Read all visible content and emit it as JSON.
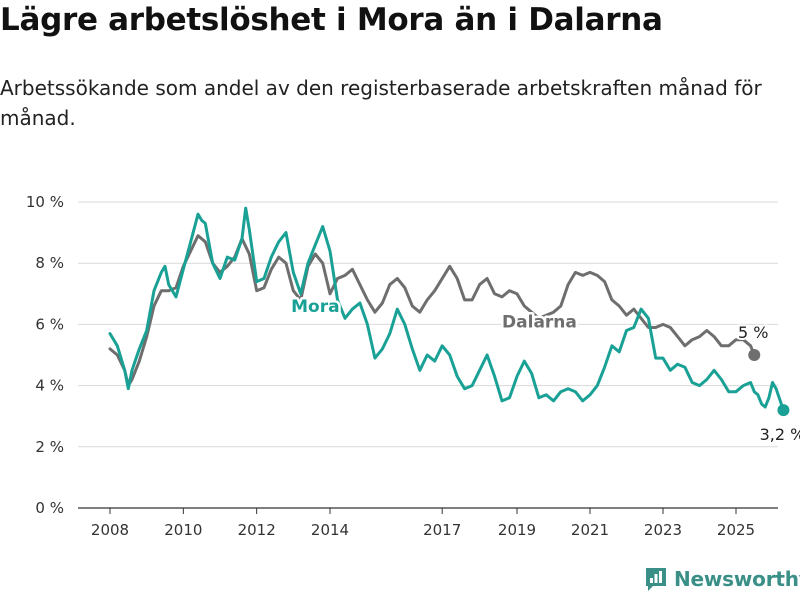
{
  "title": "Lägre arbetslöshet i Mora än i Dalarna",
  "subtitle": "Arbetssökande som andel av den registerbaserade arbetskraften månad för månad.",
  "brand": {
    "name": "Newsworthy",
    "icon": "newsworthy-logo-icon",
    "color": "#3a8f86"
  },
  "chart_data": {
    "type": "line",
    "title": "",
    "xlabel": "",
    "ylabel": "",
    "x_ticks": [
      "2008",
      "2010",
      "2012",
      "2014",
      "2017",
      "2019",
      "2021",
      "2023",
      "2025"
    ],
    "y_ticks": [
      "0 %",
      "2 %",
      "4 %",
      "6 %",
      "8 %",
      "10 %"
    ],
    "ylim": [
      0,
      10
    ],
    "grid": true,
    "series": [
      {
        "name": "Dalarna",
        "color": "#6e6e6e",
        "end_label": "5 %",
        "points": [
          [
            2008.0,
            5.2
          ],
          [
            2008.2,
            5.0
          ],
          [
            2008.4,
            4.5
          ],
          [
            2008.5,
            4.0
          ],
          [
            2008.6,
            4.2
          ],
          [
            2008.8,
            4.8
          ],
          [
            2009.0,
            5.6
          ],
          [
            2009.2,
            6.6
          ],
          [
            2009.4,
            7.1
          ],
          [
            2009.6,
            7.1
          ],
          [
            2009.8,
            7.2
          ],
          [
            2010.0,
            7.9
          ],
          [
            2010.2,
            8.4
          ],
          [
            2010.4,
            8.9
          ],
          [
            2010.6,
            8.7
          ],
          [
            2010.8,
            8.0
          ],
          [
            2011.0,
            7.7
          ],
          [
            2011.2,
            7.9
          ],
          [
            2011.4,
            8.2
          ],
          [
            2011.6,
            8.8
          ],
          [
            2011.8,
            8.3
          ],
          [
            2012.0,
            7.1
          ],
          [
            2012.2,
            7.2
          ],
          [
            2012.4,
            7.8
          ],
          [
            2012.6,
            8.2
          ],
          [
            2012.8,
            8.0
          ],
          [
            2013.0,
            7.1
          ],
          [
            2013.2,
            6.8
          ],
          [
            2013.4,
            7.9
          ],
          [
            2013.6,
            8.3
          ],
          [
            2013.8,
            8.0
          ],
          [
            2014.0,
            7.0
          ],
          [
            2014.2,
            7.5
          ],
          [
            2014.4,
            7.6
          ],
          [
            2014.6,
            7.8
          ],
          [
            2014.8,
            7.3
          ],
          [
            2015.0,
            6.8
          ],
          [
            2015.2,
            6.4
          ],
          [
            2015.4,
            6.7
          ],
          [
            2015.6,
            7.3
          ],
          [
            2015.8,
            7.5
          ],
          [
            2016.0,
            7.2
          ],
          [
            2016.2,
            6.6
          ],
          [
            2016.4,
            6.4
          ],
          [
            2016.6,
            6.8
          ],
          [
            2016.8,
            7.1
          ],
          [
            2017.0,
            7.5
          ],
          [
            2017.2,
            7.9
          ],
          [
            2017.4,
            7.5
          ],
          [
            2017.6,
            6.8
          ],
          [
            2017.8,
            6.8
          ],
          [
            2018.0,
            7.3
          ],
          [
            2018.2,
            7.5
          ],
          [
            2018.4,
            7.0
          ],
          [
            2018.6,
            6.9
          ],
          [
            2018.8,
            7.1
          ],
          [
            2019.0,
            7.0
          ],
          [
            2019.2,
            6.6
          ],
          [
            2019.4,
            6.4
          ],
          [
            2019.6,
            6.2
          ],
          [
            2019.8,
            6.3
          ],
          [
            2020.0,
            6.4
          ],
          [
            2020.2,
            6.6
          ],
          [
            2020.4,
            7.3
          ],
          [
            2020.6,
            7.7
          ],
          [
            2020.8,
            7.6
          ],
          [
            2021.0,
            7.7
          ],
          [
            2021.2,
            7.6
          ],
          [
            2021.4,
            7.4
          ],
          [
            2021.6,
            6.8
          ],
          [
            2021.8,
            6.6
          ],
          [
            2022.0,
            6.3
          ],
          [
            2022.2,
            6.5
          ],
          [
            2022.4,
            6.2
          ],
          [
            2022.6,
            5.9
          ],
          [
            2022.8,
            5.9
          ],
          [
            2023.0,
            6.0
          ],
          [
            2023.2,
            5.9
          ],
          [
            2023.4,
            5.6
          ],
          [
            2023.6,
            5.3
          ],
          [
            2023.8,
            5.5
          ],
          [
            2024.0,
            5.6
          ],
          [
            2024.2,
            5.8
          ],
          [
            2024.4,
            5.6
          ],
          [
            2024.6,
            5.3
          ],
          [
            2024.8,
            5.3
          ],
          [
            2025.0,
            5.5
          ],
          [
            2025.2,
            5.5
          ],
          [
            2025.4,
            5.3
          ],
          [
            2025.5,
            5.0
          ]
        ]
      },
      {
        "name": "Mora",
        "color": "#1aa196",
        "end_label": "3,2 %",
        "points": [
          [
            2008.0,
            5.7
          ],
          [
            2008.2,
            5.3
          ],
          [
            2008.4,
            4.5
          ],
          [
            2008.5,
            3.9
          ],
          [
            2008.6,
            4.5
          ],
          [
            2008.8,
            5.2
          ],
          [
            2009.0,
            5.8
          ],
          [
            2009.2,
            7.1
          ],
          [
            2009.4,
            7.7
          ],
          [
            2009.5,
            7.9
          ],
          [
            2009.6,
            7.3
          ],
          [
            2009.8,
            6.9
          ],
          [
            2010.0,
            7.8
          ],
          [
            2010.2,
            8.7
          ],
          [
            2010.4,
            9.6
          ],
          [
            2010.5,
            9.4
          ],
          [
            2010.6,
            9.3
          ],
          [
            2010.8,
            8.0
          ],
          [
            2011.0,
            7.5
          ],
          [
            2011.2,
            8.2
          ],
          [
            2011.4,
            8.1
          ],
          [
            2011.6,
            8.8
          ],
          [
            2011.7,
            9.8
          ],
          [
            2011.8,
            9.1
          ],
          [
            2012.0,
            7.4
          ],
          [
            2012.2,
            7.5
          ],
          [
            2012.4,
            8.2
          ],
          [
            2012.6,
            8.7
          ],
          [
            2012.8,
            9.0
          ],
          [
            2013.0,
            7.7
          ],
          [
            2013.2,
            7.0
          ],
          [
            2013.4,
            8.0
          ],
          [
            2013.6,
            8.6
          ],
          [
            2013.8,
            9.2
          ],
          [
            2014.0,
            8.4
          ],
          [
            2014.2,
            6.8
          ],
          [
            2014.4,
            6.2
          ],
          [
            2014.6,
            6.5
          ],
          [
            2014.8,
            6.7
          ],
          [
            2015.0,
            6.0
          ],
          [
            2015.2,
            4.9
          ],
          [
            2015.4,
            5.2
          ],
          [
            2015.6,
            5.7
          ],
          [
            2015.8,
            6.5
          ],
          [
            2016.0,
            6.0
          ],
          [
            2016.2,
            5.2
          ],
          [
            2016.4,
            4.5
          ],
          [
            2016.6,
            5.0
          ],
          [
            2016.8,
            4.8
          ],
          [
            2017.0,
            5.3
          ],
          [
            2017.2,
            5.0
          ],
          [
            2017.4,
            4.3
          ],
          [
            2017.6,
            3.9
          ],
          [
            2017.8,
            4.0
          ],
          [
            2018.0,
            4.5
          ],
          [
            2018.2,
            5.0
          ],
          [
            2018.4,
            4.3
          ],
          [
            2018.6,
            3.5
          ],
          [
            2018.8,
            3.6
          ],
          [
            2019.0,
            4.3
          ],
          [
            2019.2,
            4.8
          ],
          [
            2019.4,
            4.4
          ],
          [
            2019.6,
            3.6
          ],
          [
            2019.8,
            3.7
          ],
          [
            2020.0,
            3.5
          ],
          [
            2020.2,
            3.8
          ],
          [
            2020.4,
            3.9
          ],
          [
            2020.6,
            3.8
          ],
          [
            2020.8,
            3.5
          ],
          [
            2021.0,
            3.7
          ],
          [
            2021.2,
            4.0
          ],
          [
            2021.4,
            4.6
          ],
          [
            2021.6,
            5.3
          ],
          [
            2021.8,
            5.1
          ],
          [
            2022.0,
            5.8
          ],
          [
            2022.2,
            5.9
          ],
          [
            2022.4,
            6.5
          ],
          [
            2022.6,
            6.2
          ],
          [
            2022.8,
            4.9
          ],
          [
            2023.0,
            4.9
          ],
          [
            2023.2,
            4.5
          ],
          [
            2023.4,
            4.7
          ],
          [
            2023.6,
            4.6
          ],
          [
            2023.8,
            4.1
          ],
          [
            2024.0,
            4.0
          ],
          [
            2024.2,
            4.2
          ],
          [
            2024.4,
            4.5
          ],
          [
            2024.6,
            4.2
          ],
          [
            2024.8,
            3.8
          ],
          [
            2025.0,
            3.8
          ],
          [
            2025.2,
            4.0
          ],
          [
            2025.4,
            4.1
          ],
          [
            2025.5,
            3.8
          ],
          [
            2025.6,
            3.7
          ],
          [
            2025.7,
            3.4
          ],
          [
            2025.8,
            3.3
          ],
          [
            2025.9,
            3.6
          ],
          [
            2026.0,
            4.1
          ],
          [
            2026.1,
            3.9
          ],
          [
            2026.3,
            3.2
          ]
        ]
      }
    ]
  }
}
